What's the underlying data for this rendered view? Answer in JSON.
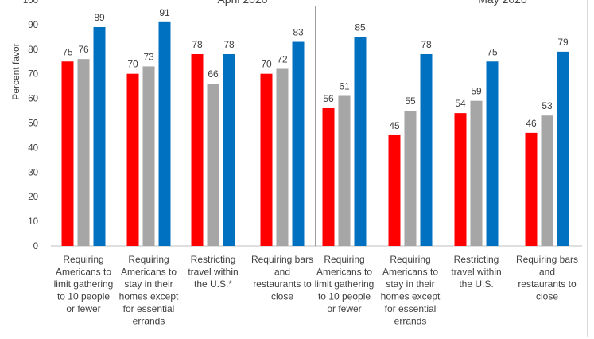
{
  "chart_data": {
    "type": "bar",
    "ylabel": "Percent favor",
    "ylim": [
      0,
      100
    ],
    "yticks": [
      0,
      10,
      20,
      30,
      40,
      50,
      60,
      70,
      80,
      90,
      100
    ],
    "grid": false,
    "colors": [
      "#ff0000",
      "#a6a6a6",
      "#0070c0"
    ],
    "panels": [
      {
        "title": "April 2020",
        "categories": [
          [
            "Requiring",
            "Americans to",
            "limit gathering",
            "to 10 people",
            "or fewer"
          ],
          [
            "Requiring",
            "Americans to",
            "stay in their",
            "homes except",
            "for essential",
            "errands"
          ],
          [
            "Restricting",
            "travel within",
            "the U.S.*"
          ],
          [
            "Requiring bars",
            "and",
            "restaurants to",
            "close"
          ]
        ],
        "series_values": [
          [
            75,
            70,
            78,
            70
          ],
          [
            76,
            73,
            66,
            72
          ],
          [
            89,
            91,
            78,
            83
          ]
        ]
      },
      {
        "title": "May 2020",
        "categories": [
          [
            "Requiring",
            "Americans to",
            "limit gathering",
            "to 10 people",
            "or fewer"
          ],
          [
            "Requiring",
            "Americans to",
            "stay in their",
            "homes except",
            "for essential",
            "errands"
          ],
          [
            "Restricting",
            "travel within",
            "the U.S."
          ],
          [
            "Requiring bars",
            "and",
            "restaurants to",
            "close"
          ]
        ],
        "series_values": [
          [
            56,
            45,
            54,
            46
          ],
          [
            61,
            55,
            59,
            53
          ],
          [
            85,
            78,
            75,
            79
          ]
        ]
      }
    ]
  }
}
